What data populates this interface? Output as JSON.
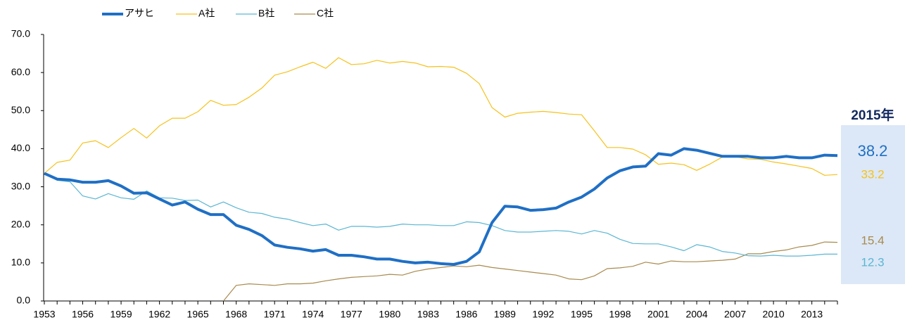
{
  "chart_data": {
    "type": "line",
    "categories": [
      "1953",
      null,
      null,
      "1956",
      null,
      null,
      "1959",
      null,
      null,
      "1962",
      null,
      null,
      "1965",
      null,
      null,
      "1968",
      null,
      null,
      "1971",
      null,
      null,
      "1974",
      null,
      null,
      "1977",
      null,
      null,
      "1980",
      null,
      null,
      "1983",
      null,
      null,
      "1986",
      null,
      null,
      "1989",
      null,
      null,
      "1992",
      null,
      null,
      "1995",
      null,
      null,
      "1998",
      null,
      null,
      "2001",
      null,
      null,
      "2004",
      null,
      null,
      "2007",
      null,
      null,
      "2010",
      null,
      null,
      "2013",
      null,
      null
    ],
    "series": [
      {
        "name": "アサヒ",
        "color": "#1f6fc5",
        "values": [
          33.5,
          32,
          31.8,
          31.2,
          31.2,
          31.6,
          30.2,
          28.3,
          28.4,
          26.8,
          25.2,
          26,
          24.1,
          22.7,
          22.7,
          19.9,
          18.8,
          17.2,
          14.7,
          14.1,
          13.7,
          13.1,
          13.5,
          12,
          12,
          11.6,
          11,
          11,
          10.4,
          10,
          10.2,
          9.8,
          9.6,
          10.4,
          12.9,
          20.6,
          24.9,
          24.7,
          23.8,
          24,
          24.4,
          26,
          27.3,
          29.4,
          32.3,
          34.2,
          35.2,
          35.4,
          38.7,
          38.3,
          40,
          39.6,
          38.8,
          38,
          38,
          38,
          37.6,
          37.6,
          38,
          37.6,
          37.6,
          38.3,
          38.2
        ]
      },
      {
        "name": "A社",
        "color": "#f5c21b",
        "values": [
          33.5,
          36.4,
          37,
          41.5,
          42.1,
          40.3,
          42.9,
          45.3,
          42.8,
          46,
          48,
          48,
          49.7,
          52.7,
          51.4,
          51.6,
          53.5,
          55.9,
          59.3,
          60.2,
          61.5,
          62.7,
          61.1,
          63.9,
          62.1,
          62.3,
          63.2,
          62.5,
          62.9,
          62.5,
          61.5,
          61.6,
          61.4,
          59.8,
          57.1,
          50.8,
          48.3,
          49.3,
          49.6,
          49.8,
          49.5,
          49.1,
          48.9,
          44.7,
          40.3,
          40.3,
          39.9,
          38.4,
          35.9,
          36.2,
          35.8,
          34.3,
          35.9,
          37.8,
          37.9,
          37.3,
          37.2,
          36.5,
          36,
          35.4,
          34.8,
          33,
          33.2
        ]
      },
      {
        "name": "B社",
        "color": "#5bb6d2",
        "values": [
          33.5,
          31.7,
          31.3,
          27.6,
          26.8,
          28.2,
          27.1,
          26.7,
          28.9,
          27.1,
          27,
          26.4,
          26.5,
          24.7,
          26,
          24.5,
          23.3,
          23,
          22,
          21.5,
          20.6,
          19.8,
          20.2,
          18.6,
          19.6,
          19.6,
          19.4,
          19.6,
          20.2,
          20,
          20,
          19.8,
          19.8,
          20.8,
          20.6,
          19.8,
          18.5,
          18.1,
          18.1,
          18.3,
          18.5,
          18.3,
          17.6,
          18.5,
          17.8,
          16.2,
          15.1,
          15,
          15,
          14.2,
          13.2,
          14.8,
          14.2,
          13,
          12.6,
          11.9,
          11.8,
          12,
          11.8,
          11.8,
          12,
          12.3,
          12.3
        ]
      },
      {
        "name": "C社",
        "color": "#a88a4e",
        "values": [
          null,
          null,
          null,
          null,
          null,
          null,
          null,
          null,
          null,
          null,
          null,
          null,
          null,
          null,
          0,
          4.1,
          4.5,
          4.3,
          4.1,
          4.5,
          4.5,
          4.7,
          5.3,
          5.8,
          6.2,
          6.4,
          6.6,
          7,
          6.8,
          7.8,
          8.4,
          8.8,
          9.2,
          9,
          9.4,
          8.8,
          8.4,
          8,
          7.6,
          7.2,
          6.8,
          5.8,
          5.6,
          6.6,
          8.5,
          8.7,
          9.1,
          10.2,
          9.7,
          10.5,
          10.3,
          10.3,
          10.5,
          10.7,
          11,
          12.4,
          12.4,
          13,
          13.4,
          14.2,
          14.6,
          15.5,
          15.4
        ]
      }
    ],
    "ylim": [
      0,
      70
    ],
    "yticks": [
      {
        "value": 0,
        "label": "0.0"
      },
      {
        "value": 10,
        "label": "10.0"
      },
      {
        "value": 20,
        "label": "20.0"
      },
      {
        "value": 30,
        "label": "30.0"
      },
      {
        "value": 40,
        "label": "40.0"
      },
      {
        "value": 50,
        "label": "50.0"
      },
      {
        "value": 60,
        "label": "60.0"
      },
      {
        "value": 70,
        "label": "70.0"
      }
    ],
    "end_title": "2015年"
  }
}
